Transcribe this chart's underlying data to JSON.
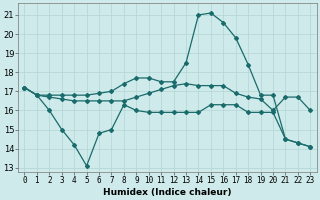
{
  "xlabel": "Humidex (Indice chaleur)",
  "background_color": "#ceeaea",
  "grid_color": "#b8d8d8",
  "line_color": "#1a6b6b",
  "xlim": [
    -0.5,
    23.5
  ],
  "ylim": [
    12.8,
    21.6
  ],
  "yticks": [
    13,
    14,
    15,
    16,
    17,
    18,
    19,
    20,
    21
  ],
  "xticks": [
    0,
    1,
    2,
    3,
    4,
    5,
    6,
    7,
    8,
    9,
    10,
    11,
    12,
    13,
    14,
    15,
    16,
    17,
    18,
    19,
    20,
    21,
    22,
    23
  ],
  "series": [
    {
      "x": [
        0,
        1,
        2,
        3,
        4,
        5,
        6,
        7,
        8,
        9,
        10,
        11,
        12,
        13,
        14,
        15,
        16,
        17,
        18,
        19,
        20,
        21,
        22,
        23
      ],
      "y": [
        17.2,
        16.8,
        16.8,
        16.8,
        16.8,
        16.8,
        16.9,
        17.0,
        17.4,
        17.7,
        17.7,
        17.5,
        17.5,
        18.5,
        21.0,
        21.1,
        20.6,
        19.8,
        18.4,
        16.8,
        16.8,
        14.5,
        14.3,
        14.1
      ]
    },
    {
      "x": [
        0,
        1,
        2,
        3,
        4,
        5,
        6,
        7,
        8,
        9,
        10,
        11,
        12,
        13,
        14,
        15,
        16,
        17,
        18,
        19,
        20,
        21,
        22,
        23
      ],
      "y": [
        17.2,
        16.8,
        16.7,
        16.6,
        16.5,
        16.5,
        16.5,
        16.5,
        16.5,
        16.7,
        16.9,
        17.1,
        17.3,
        17.4,
        17.3,
        17.3,
        17.3,
        16.9,
        16.7,
        16.6,
        16.0,
        16.7,
        16.7,
        16.0
      ]
    },
    {
      "x": [
        0,
        1,
        2,
        3,
        4,
        5,
        6,
        7,
        8,
        9,
        10,
        11,
        12,
        13,
        14,
        15,
        16,
        17,
        18,
        19,
        20,
        21,
        22,
        23
      ],
      "y": [
        17.2,
        16.8,
        16.0,
        15.0,
        14.2,
        13.1,
        14.8,
        15.0,
        16.3,
        16.0,
        15.9,
        15.9,
        15.9,
        15.9,
        15.9,
        16.3,
        16.3,
        16.3,
        15.9,
        15.9,
        15.9,
        14.5,
        14.3,
        14.1
      ]
    }
  ]
}
